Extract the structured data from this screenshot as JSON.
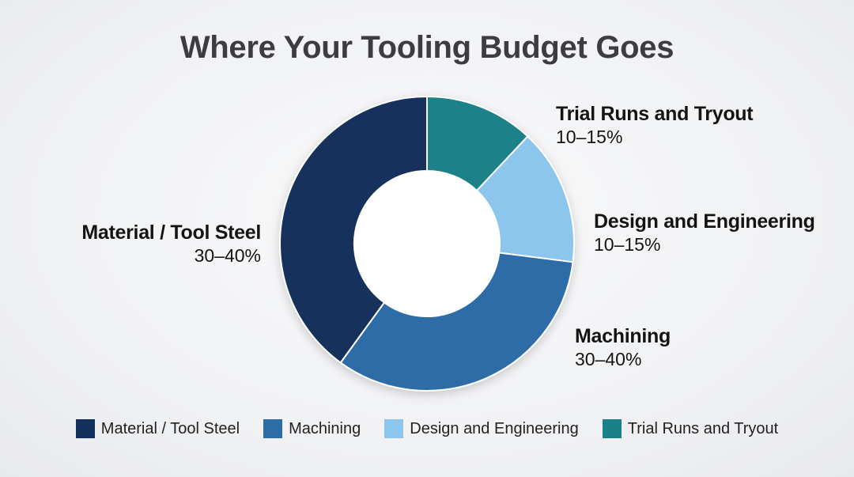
{
  "title": "Where Your Tooling Budget Goes",
  "chart_data": {
    "type": "pie",
    "donut": true,
    "title": "Where Your Tooling Budget Goes",
    "slices": [
      {
        "name": "Trial Runs and Tryout",
        "range": "10–15%",
        "value": 12,
        "color": "#1b8189"
      },
      {
        "name": "Design and Engineering",
        "range": "10–15%",
        "value": 15,
        "color": "#8dc6ec"
      },
      {
        "name": "Machining",
        "range": "30–40%",
        "value": 33,
        "color": "#2e6ca8"
      },
      {
        "name": "Material / Tool Steel",
        "range": "30–40%",
        "value": 40,
        "color": "#13305c"
      }
    ],
    "legend": {
      "position": "bottom",
      "entries": [
        "Material / Tool Steel",
        "Machining",
        "Design and Engineering",
        "Trial Runs and Tryout"
      ]
    }
  }
}
